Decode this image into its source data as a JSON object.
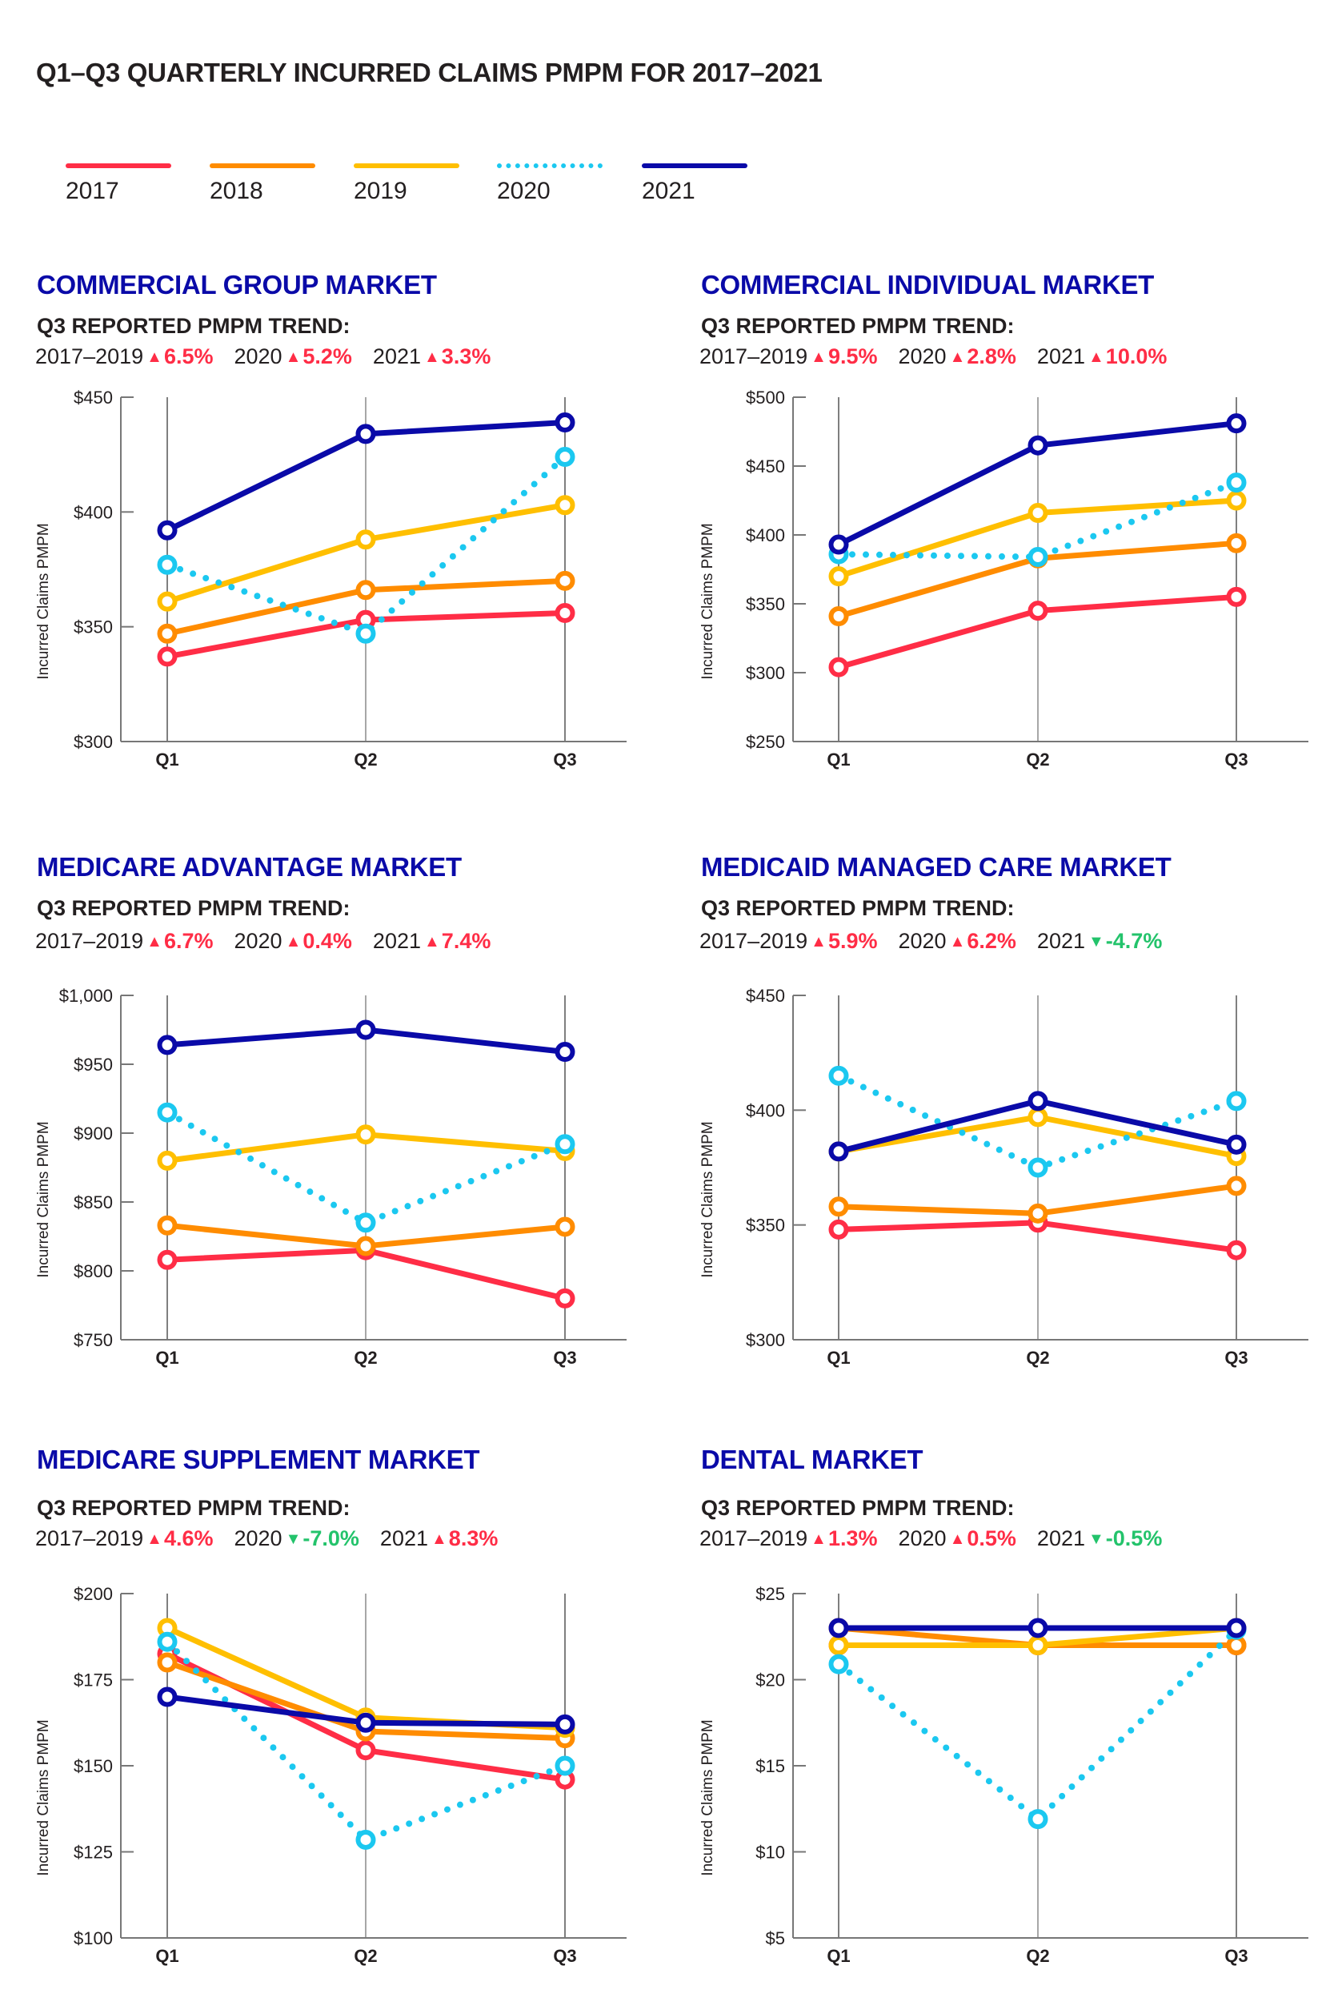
{
  "title": "Q1–Q3 QUARTERLY INCURRED CLAIMS PMPM FOR 2017–2021",
  "legend": [
    {
      "label": "2017",
      "color": "#ff2d46",
      "style": "solid"
    },
    {
      "label": "2018",
      "color": "#ff8c00",
      "style": "solid"
    },
    {
      "label": "2019",
      "color": "#ffbf00",
      "style": "solid"
    },
    {
      "label": "2020",
      "color": "#1bc8f0",
      "style": "dotted"
    },
    {
      "label": "2021",
      "color": "#0a0aa8",
      "style": "solid"
    }
  ],
  "trend_heading": "Q3 REPORTED PMPM TREND:",
  "colors": {
    "up": "#ff2d46",
    "down": "#23c36b",
    "title": "#0a0aa8"
  },
  "chart_data": [
    {
      "type": "line",
      "title": "COMMERCIAL GROUP MARKET",
      "trend": [
        {
          "label": "2017–2019",
          "direction": "up",
          "value": "6.5%"
        },
        {
          "label": "2020",
          "direction": "up",
          "value": "5.2%"
        },
        {
          "label": "2021",
          "direction": "up",
          "value": "3.3%"
        }
      ],
      "ylabel": "Incurred Claims PMPM",
      "categories": [
        "Q1",
        "Q2",
        "Q3"
      ],
      "ylim": [
        300,
        450
      ],
      "yticks": [
        300,
        350,
        400,
        450
      ],
      "ytick_labels": [
        "$300",
        "$350",
        "$400",
        "$450"
      ],
      "series": [
        {
          "name": "2017",
          "values": [
            337,
            353,
            356
          ]
        },
        {
          "name": "2018",
          "values": [
            347,
            366,
            370
          ]
        },
        {
          "name": "2019",
          "values": [
            361,
            388,
            403
          ]
        },
        {
          "name": "2020",
          "values": [
            377,
            347,
            424
          ]
        },
        {
          "name": "2021",
          "values": [
            392,
            434,
            439
          ]
        }
      ]
    },
    {
      "type": "line",
      "title": "COMMERCIAL INDIVIDUAL MARKET",
      "trend": [
        {
          "label": "2017–2019",
          "direction": "up",
          "value": "9.5%"
        },
        {
          "label": "2020",
          "direction": "up",
          "value": "2.8%"
        },
        {
          "label": "2021",
          "direction": "up",
          "value": "10.0%"
        }
      ],
      "ylabel": "Incurred Claims PMPM",
      "categories": [
        "Q1",
        "Q2",
        "Q3"
      ],
      "ylim": [
        250,
        500
      ],
      "yticks": [
        250,
        300,
        350,
        400,
        450,
        500
      ],
      "ytick_labels": [
        "$250",
        "$300",
        "$350",
        "$400",
        "$450",
        "$500"
      ],
      "series": [
        {
          "name": "2017",
          "values": [
            304,
            345,
            355
          ]
        },
        {
          "name": "2018",
          "values": [
            341,
            383,
            394
          ]
        },
        {
          "name": "2019",
          "values": [
            370,
            416,
            425
          ]
        },
        {
          "name": "2020",
          "values": [
            386,
            384,
            438
          ]
        },
        {
          "name": "2021",
          "values": [
            393,
            465,
            481
          ]
        }
      ]
    },
    {
      "type": "line",
      "title": "MEDICARE ADVANTAGE MARKET",
      "trend": [
        {
          "label": "2017–2019",
          "direction": "up",
          "value": "6.7%"
        },
        {
          "label": "2020",
          "direction": "up",
          "value": "0.4%"
        },
        {
          "label": "2021",
          "direction": "up",
          "value": "7.4%"
        }
      ],
      "ylabel": "Incurred Claims PMPM",
      "categories": [
        "Q1",
        "Q2",
        "Q3"
      ],
      "ylim": [
        750,
        1000
      ],
      "yticks": [
        750,
        800,
        850,
        900,
        950,
        1000
      ],
      "ytick_labels": [
        "$750",
        "$800",
        "$850",
        "$900",
        "$950",
        "$1,000"
      ],
      "series": [
        {
          "name": "2017",
          "values": [
            808,
            815,
            780
          ]
        },
        {
          "name": "2018",
          "values": [
            833,
            818,
            832
          ]
        },
        {
          "name": "2019",
          "values": [
            880,
            899,
            887
          ]
        },
        {
          "name": "2020",
          "values": [
            915,
            835,
            892
          ]
        },
        {
          "name": "2021",
          "values": [
            964,
            975,
            959
          ]
        }
      ]
    },
    {
      "type": "line",
      "title": "MEDICAID MANAGED CARE MARKET",
      "trend": [
        {
          "label": "2017–2019",
          "direction": "up",
          "value": "5.9%"
        },
        {
          "label": "2020",
          "direction": "up",
          "value": "6.2%"
        },
        {
          "label": "2021",
          "direction": "down",
          "value": "-4.7%"
        }
      ],
      "ylabel": "Incurred Claims PMPM",
      "categories": [
        "Q1",
        "Q2",
        "Q3"
      ],
      "ylim": [
        300,
        450
      ],
      "yticks": [
        300,
        350,
        400,
        450
      ],
      "ytick_labels": [
        "$300",
        "$350",
        "$400",
        "$450"
      ],
      "series": [
        {
          "name": "2017",
          "values": [
            348,
            351,
            339
          ]
        },
        {
          "name": "2018",
          "values": [
            358,
            355,
            367
          ]
        },
        {
          "name": "2019",
          "values": [
            382,
            397,
            380
          ]
        },
        {
          "name": "2020",
          "values": [
            415,
            375,
            404
          ]
        },
        {
          "name": "2021",
          "values": [
            382,
            404,
            385
          ]
        }
      ]
    },
    {
      "type": "line",
      "title": "MEDICARE SUPPLEMENT MARKET",
      "trend": [
        {
          "label": "2017–2019",
          "direction": "up",
          "value": "4.6%"
        },
        {
          "label": "2020",
          "direction": "down",
          "value": "-7.0%"
        },
        {
          "label": "2021",
          "direction": "up",
          "value": "8.3%"
        }
      ],
      "ylabel": "Incurred Claims PMPM",
      "categories": [
        "Q1",
        "Q2",
        "Q3"
      ],
      "ylim": [
        100,
        200
      ],
      "yticks": [
        100,
        125,
        150,
        175,
        200
      ],
      "ytick_labels": [
        "$100",
        "$125",
        "$150",
        "$175",
        "$200"
      ],
      "series": [
        {
          "name": "2017",
          "values": [
            182.5,
            154.5,
            146
          ]
        },
        {
          "name": "2018",
          "values": [
            180,
            160,
            158
          ]
        },
        {
          "name": "2019",
          "values": [
            190,
            164,
            161
          ]
        },
        {
          "name": "2020",
          "values": [
            186,
            128.5,
            150
          ]
        },
        {
          "name": "2021",
          "values": [
            170,
            162.5,
            162
          ]
        }
      ]
    },
    {
      "type": "line",
      "title": "DENTAL MARKET",
      "trend": [
        {
          "label": "2017–2019",
          "direction": "up",
          "value": "1.3%"
        },
        {
          "label": "2020",
          "direction": "up",
          "value": "0.5%"
        },
        {
          "label": "2021",
          "direction": "down",
          "value": "-0.5%"
        }
      ],
      "ylabel": "Incurred Claims PMPM",
      "categories": [
        "Q1",
        "Q2",
        "Q3"
      ],
      "ylim": [
        5,
        25
      ],
      "yticks": [
        5,
        10,
        15,
        20,
        25
      ],
      "ytick_labels": [
        "$5",
        "$10",
        "$15",
        "$20",
        "$25"
      ],
      "series": [
        {
          "name": "2017",
          "values": [
            22,
            22,
            22
          ]
        },
        {
          "name": "2018",
          "values": [
            23,
            22,
            22
          ]
        },
        {
          "name": "2019",
          "values": [
            22,
            22,
            23
          ]
        },
        {
          "name": "2020",
          "values": [
            20.9,
            11.9,
            22.9
          ]
        },
        {
          "name": "2021",
          "values": [
            23,
            23,
            23
          ]
        }
      ]
    }
  ]
}
